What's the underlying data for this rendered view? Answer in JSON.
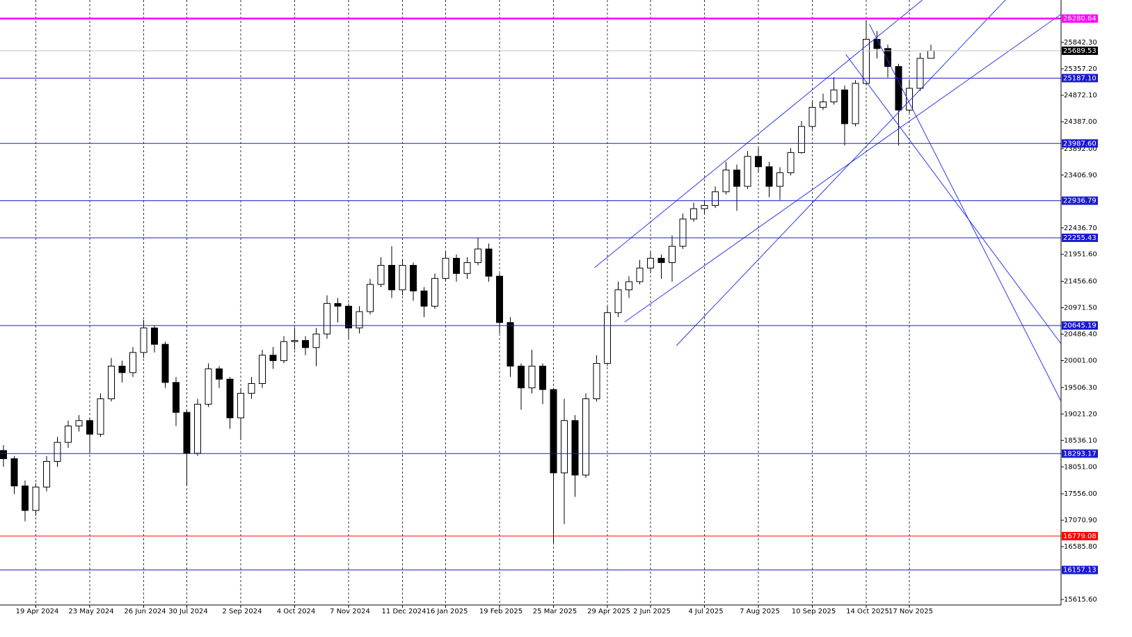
{
  "chart_data": {
    "type": "candlestick",
    "categories": [
      null,
      null,
      null,
      "19 Apr 2024",
      null,
      null,
      null,
      null,
      "23 May 2024",
      null,
      null,
      null,
      null,
      "26 Jun 2024",
      null,
      null,
      null,
      "30 Jul 2024",
      null,
      null,
      null,
      null,
      "2 Sep 2024",
      null,
      null,
      null,
      null,
      "4 Oct 2024",
      null,
      null,
      null,
      null,
      "7 Nov 2024",
      null,
      null,
      null,
      null,
      "11 Dec 2024",
      null,
      null,
      null,
      "16 Jan 2025",
      null,
      null,
      null,
      null,
      "19 Feb 2025",
      null,
      null,
      null,
      null,
      "25 Mar 2025",
      null,
      null,
      null,
      null,
      "29 Apr 2025",
      null,
      null,
      null,
      "2 Jun 2025",
      null,
      null,
      null,
      null,
      "4 Jul 2025",
      null,
      null,
      null,
      null,
      "7 Aug 2025",
      null,
      null,
      null,
      null,
      "10 Sep 2025",
      null,
      null,
      null,
      null,
      "14 Oct 2025",
      null,
      null,
      null,
      "17 Nov 2025",
      null,
      null
    ],
    "open": [
      18350,
      18200,
      17700,
      17250,
      17680,
      18150,
      18500,
      18800,
      18900,
      18650,
      19300,
      19900,
      19780,
      20150,
      20600,
      20300,
      19600,
      19050,
      18300,
      19200,
      19850,
      19660,
      18950,
      19400,
      19580,
      20100,
      20000,
      20350,
      20370,
      20240,
      20490,
      21050,
      21000,
      20600,
      20900,
      21400,
      21750,
      21300,
      21750,
      21280,
      21000,
      21510,
      21880,
      21600,
      21800,
      22050,
      21550,
      20700,
      19900,
      19500,
      19900,
      19470,
      17940,
      18900,
      17900,
      19300,
      19950,
      20880,
      21300,
      21450,
      21700,
      21880,
      21800,
      22100,
      22600,
      22790,
      22850,
      23100,
      23500,
      23200,
      23750,
      23560,
      23200,
      23450,
      23820,
      24300,
      24650,
      24750,
      24970,
      24350,
      25090,
      25900,
      25730,
      25400,
      24600,
      25000,
      25550
    ],
    "high": [
      18450,
      18250,
      17800,
      17750,
      18250,
      18600,
      18900,
      19000,
      18950,
      19400,
      20050,
      20000,
      20250,
      20750,
      20650,
      20350,
      19700,
      19100,
      19300,
      19950,
      19900,
      19700,
      19500,
      19700,
      20200,
      20250,
      20450,
      20600,
      20450,
      20600,
      21200,
      21150,
      21050,
      21000,
      21500,
      21900,
      22100,
      21850,
      21800,
      21350,
      21600,
      22000,
      21950,
      21900,
      22250,
      22150,
      21600,
      20800,
      19950,
      20200,
      19950,
      19500,
      19300,
      19000,
      19400,
      20100,
      21000,
      21450,
      21550,
      21850,
      22000,
      21950,
      22300,
      22700,
      22900,
      22950,
      23200,
      23650,
      23600,
      23850,
      23900,
      23650,
      23550,
      23900,
      24400,
      24750,
      24900,
      25200,
      25050,
      25150,
      26250,
      26050,
      25800,
      25450,
      25150,
      25650,
      25800
    ],
    "low": [
      18050,
      17550,
      17050,
      17150,
      17600,
      18050,
      18400,
      18700,
      18300,
      18600,
      19250,
      19600,
      19700,
      20050,
      20150,
      19500,
      18800,
      17700,
      18250,
      19150,
      19500,
      18750,
      18550,
      19300,
      19500,
      19850,
      19950,
      20200,
      20100,
      19900,
      20400,
      20700,
      20400,
      20500,
      20850,
      21350,
      21150,
      21200,
      21100,
      20800,
      20950,
      21450,
      21450,
      21500,
      21750,
      21450,
      20500,
      19700,
      19100,
      19400,
      19200,
      16650,
      17000,
      17500,
      17850,
      19250,
      19900,
      20800,
      21150,
      21400,
      21600,
      21500,
      21450,
      22050,
      22550,
      22700,
      22800,
      23050,
      22750,
      23150,
      23450,
      23000,
      22950,
      23400,
      23800,
      24250,
      24600,
      24700,
      23950,
      24300,
      25050,
      25550,
      25200,
      23950,
      24550,
      24950,
      25550
    ],
    "close": [
      18200,
      17700,
      17250,
      17680,
      18150,
      18500,
      18800,
      18900,
      18650,
      19300,
      19900,
      19780,
      20150,
      20600,
      20300,
      19600,
      19050,
      18300,
      19200,
      19850,
      19660,
      18950,
      19400,
      19580,
      20100,
      20000,
      20350,
      20370,
      20240,
      20490,
      21050,
      21000,
      20600,
      20900,
      21400,
      21750,
      21300,
      21750,
      21280,
      21000,
      21510,
      21880,
      21600,
      21800,
      22050,
      21550,
      20700,
      19900,
      19500,
      19900,
      19470,
      17940,
      18900,
      17900,
      19300,
      19950,
      20880,
      21300,
      21450,
      21700,
      21880,
      21800,
      22100,
      22600,
      22790,
      22850,
      23100,
      23500,
      23200,
      23750,
      23560,
      23200,
      23450,
      23820,
      24300,
      24650,
      24750,
      24970,
      24350,
      25090,
      25900,
      25730,
      25400,
      24600,
      25000,
      25550,
      25690
    ],
    "ylim": [
      15514,
      26621
    ],
    "yticks": [
      {
        "value": 25842.3,
        "label": "25842.30"
      },
      {
        "value": 25357.2,
        "label": "25357.20"
      },
      {
        "value": 24872.1,
        "label": "24872.10"
      },
      {
        "value": 24387,
        "label": "24387.00"
      },
      {
        "value": 23892,
        "label": "23892.00"
      },
      {
        "value": 23406.9,
        "label": "23406.90"
      },
      {
        "value": 22436.7,
        "label": "22436.70"
      },
      {
        "value": 21951.6,
        "label": "21951.60"
      },
      {
        "value": 21456.6,
        "label": "21456.60"
      },
      {
        "value": 20971.5,
        "label": "20971.50"
      },
      {
        "value": 20486.4,
        "label": "20486.40"
      },
      {
        "value": 20001,
        "label": "20001.00"
      },
      {
        "value": 19506.3,
        "label": "19506.30"
      },
      {
        "value": 19021.2,
        "label": "19021.20"
      },
      {
        "value": 18536.1,
        "label": "18536.10"
      },
      {
        "value": 18051,
        "label": "18051.00"
      },
      {
        "value": 17556,
        "label": "17556.00"
      },
      {
        "value": 17070.9,
        "label": "17070.90"
      },
      {
        "value": 16585.8,
        "label": "16585.80"
      },
      {
        "value": 15615.6,
        "label": "15615.60"
      }
    ],
    "levels": [
      {
        "value": 26280.64,
        "label": "26280.64",
        "color": "#ff00ff"
      },
      {
        "value": 25187.1,
        "label": "25187.10",
        "color": "#1a1ad0"
      },
      {
        "value": 23987.6,
        "label": "23987.60",
        "color": "#1a1ad0"
      },
      {
        "value": 22936.79,
        "label": "22936.79",
        "color": "#1a1ad0"
      },
      {
        "value": 22255.43,
        "label": "22255.43",
        "color": "#1a1ad0"
      },
      {
        "value": 20645.19,
        "label": "20645.19",
        "color": "#1a1ad0"
      },
      {
        "value": 18293.17,
        "label": "18293.17",
        "color": "#1a1ad0"
      },
      {
        "value": 16779.08,
        "label": "16779.08",
        "color": "#ff0000"
      },
      {
        "value": 16157.13,
        "label": "16157.13",
        "color": "#1a1ad0"
      }
    ],
    "last_price": {
      "value": 25689.53,
      "label": "25689.53",
      "color": "#000000"
    },
    "trendlines": [
      {
        "start": [
          54.8,
          21706
        ],
        "end": [
          85.2,
          26620
        ],
        "color": "#2a3ae8"
      },
      {
        "start": [
          57.6,
          20710
        ],
        "end": [
          98.1,
          26365
        ],
        "color": "#2a3ae8"
      },
      {
        "start": [
          62.4,
          20276
        ],
        "end": [
          92.9,
          26620
        ],
        "color": "#2a3ae8"
      },
      {
        "start": [
          78.1,
          25625
        ],
        "end": [
          98.1,
          20301
        ],
        "color": "#2a3ae8"
      },
      {
        "start": [
          80.3,
          26174
        ],
        "end": [
          98.1,
          19242
        ],
        "color": "#2a3ae8"
      }
    ],
    "grid": true
  }
}
